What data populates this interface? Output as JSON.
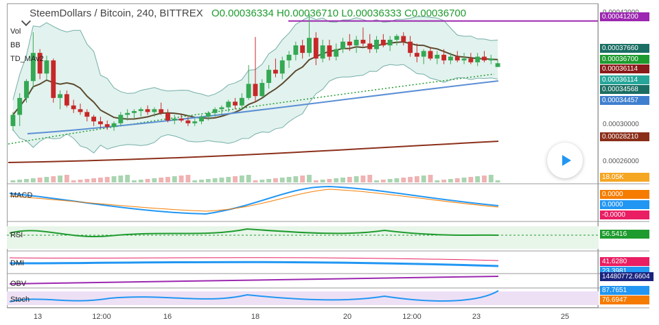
{
  "header": {
    "symbol": "SteemDollars / Bitcoin, 240, BITTREX",
    "ohlc": "O0.00036334  H0.00036710  L0.00036333  C0.00036700"
  },
  "indicators": {
    "vol": "Vol",
    "bb": "BB",
    "td": "TD_MAv2",
    "macd": "MACD",
    "rsi": "RSI",
    "dmi": "DMI",
    "obv": "OBV",
    "stoch": "Stoch"
  },
  "price_axis": {
    "ticks": [
      "0.00042000",
      "0.00030000",
      "0.00026000"
    ],
    "labels": [
      {
        "text": "0.00041200",
        "color": "#9c27b0"
      },
      {
        "text": "0.00037660",
        "color": "#1b6e63"
      },
      {
        "text": "0.00036700",
        "color": "#1e9b2e"
      },
      {
        "text": "0.00036114",
        "color": "#8b1a1a"
      },
      {
        "text": "0.00036114",
        "color": "#26a69a"
      },
      {
        "text": "0.00034568",
        "color": "#1b6e63"
      },
      {
        "text": "0.00034457",
        "color": "#3f7fcf"
      },
      {
        "text": "0.00028210",
        "color": "#8b2f1a"
      },
      {
        "text": "18.05K",
        "color": "#f5a623"
      }
    ]
  },
  "panes": {
    "macd": [
      "0.0000",
      "0.0000",
      "-0.0000"
    ],
    "rsi": "56.5416",
    "dmi": [
      "41.6280",
      "23.3981"
    ],
    "obv": "14480772.6604",
    "stoch": [
      "87.7651",
      "76.6947"
    ]
  },
  "time_axis": [
    "13",
    "12:00",
    "16",
    "18",
    "20",
    "12:00",
    "23",
    "25"
  ],
  "colors": {
    "up": "#34a853",
    "down": "#c62828",
    "bb_fill": "#d6ece7",
    "resistance": "#9c27b0",
    "ma_brown": "#5b4a2e",
    "ma_dark": "#8b2f1a",
    "ma_blue": "#5b8fd4"
  },
  "chart_data": {
    "type": "candlestick",
    "title": "SteemDollars / Bitcoin, 240, BITTREX",
    "ylim": [
      0.00024,
      0.00043
    ],
    "resistance": 0.000412,
    "candles": [
      [
        0.0003,
        0.000315,
        0.000295,
        0.000312
      ],
      [
        0.000312,
        0.000335,
        0.0003,
        0.00033
      ],
      [
        0.00033,
        0.00035,
        0.000325,
        0.000348
      ],
      [
        0.000348,
        0.0004,
        0.00034,
        0.000378
      ],
      [
        0.000378,
        0.000382,
        0.00035,
        0.000356
      ],
      [
        0.000356,
        0.000375,
        0.00035,
        0.00037
      ],
      [
        0.00037,
        0.000372,
        0.000325,
        0.00033
      ],
      [
        0.00033,
        0.000338,
        0.000318,
        0.000334
      ],
      [
        0.000334,
        0.000338,
        0.00032,
        0.000322
      ],
      [
        0.000322,
        0.000328,
        0.000314,
        0.000318
      ],
      [
        0.000318,
        0.000324,
        0.000312,
        0.000315
      ],
      [
        0.000315,
        0.000318,
        0.000305,
        0.00031
      ],
      [
        0.00031,
        0.000312,
        0.0003,
        0.000305
      ],
      [
        0.000305,
        0.00031,
        0.000298,
        0.000302
      ],
      [
        0.000302,
        0.000306,
        0.000296,
        0.000299
      ],
      [
        0.000299,
        0.000305,
        0.000295,
        0.000303
      ],
      [
        0.000303,
        0.000315,
        0.0003,
        0.000312
      ],
      [
        0.000312,
        0.000318,
        0.000306,
        0.000314
      ],
      [
        0.000314,
        0.000318,
        0.000308,
        0.000316
      ],
      [
        0.000316,
        0.00032,
        0.00031,
        0.000318
      ],
      [
        0.000318,
        0.000322,
        0.000312,
        0.000315
      ],
      [
        0.000315,
        0.00032,
        0.00031,
        0.000318
      ],
      [
        0.000318,
        0.000325,
        0.000312,
        0.000314
      ],
      [
        0.000314,
        0.000318,
        0.000304,
        0.000306
      ],
      [
        0.000306,
        0.000312,
        0.000302,
        0.000308
      ],
      [
        0.000308,
        0.000312,
        0.000304,
        0.000306
      ],
      [
        0.000306,
        0.00031,
        0.0003,
        0.000303
      ],
      [
        0.000303,
        0.000308,
        0.0003,
        0.000305
      ],
      [
        0.000305,
        0.000312,
        0.000302,
        0.00031
      ],
      [
        0.00031,
        0.000316,
        0.000306,
        0.000314
      ],
      [
        0.000314,
        0.00032,
        0.00031,
        0.000318
      ],
      [
        0.000318,
        0.000322,
        0.000312,
        0.00032
      ],
      [
        0.00032,
        0.000328,
        0.000315,
        0.000326
      ],
      [
        0.000326,
        0.00033,
        0.000318,
        0.000322
      ],
      [
        0.000322,
        0.000335,
        0.000318,
        0.00033
      ],
      [
        0.00033,
        0.000365,
        0.000328,
        0.000345
      ],
      [
        0.000345,
        0.000395,
        0.000325,
        0.000332
      ],
      [
        0.000332,
        0.00035,
        0.00033,
        0.000346
      ],
      [
        0.000346,
        0.000365,
        0.00034,
        0.00036
      ],
      [
        0.00036,
        0.000372,
        0.000352,
        0.000356
      ],
      [
        0.000356,
        0.000374,
        0.00035,
        0.00037
      ],
      [
        0.00037,
        0.00038,
        0.000362,
        0.000376
      ],
      [
        0.000376,
        0.00039,
        0.00037,
        0.000386
      ],
      [
        0.000386,
        0.000392,
        0.000372,
        0.000378
      ],
      [
        0.000378,
        0.00042,
        0.000374,
        0.000394
      ],
      [
        0.000394,
        0.0004,
        0.000365,
        0.000372
      ],
      [
        0.000372,
        0.000392,
        0.000368,
        0.000386
      ],
      [
        0.000386,
        0.000392,
        0.00037,
        0.000374
      ],
      [
        0.000374,
        0.000388,
        0.00037,
        0.000382
      ],
      [
        0.000382,
        0.000394,
        0.000378,
        0.00039
      ],
      [
        0.00039,
        0.000398,
        0.00038,
        0.000386
      ],
      [
        0.000386,
        0.000396,
        0.000378,
        0.000392
      ],
      [
        0.000392,
        0.000405,
        0.000385,
        0.000388
      ],
      [
        0.000388,
        0.000398,
        0.000378,
        0.000382
      ],
      [
        0.000382,
        0.000396,
        0.000378,
        0.000392
      ],
      [
        0.000392,
        0.000398,
        0.000384,
        0.000386
      ],
      [
        0.000386,
        0.000396,
        0.00038,
        0.000392
      ],
      [
        0.000392,
        0.000398,
        0.000386,
        0.000396
      ],
      [
        0.000396,
        0.0004,
        0.000386,
        0.00039
      ],
      [
        0.00039,
        0.000396,
        0.000374,
        0.000378
      ],
      [
        0.000378,
        0.000388,
        0.000368,
        0.000374
      ],
      [
        0.000374,
        0.000382,
        0.000366,
        0.00038
      ],
      [
        0.00038,
        0.000384,
        0.00037,
        0.000372
      ],
      [
        0.000372,
        0.00038,
        0.000366,
        0.000376
      ],
      [
        0.000376,
        0.000382,
        0.000366,
        0.00037
      ],
      [
        0.00037,
        0.000378,
        0.000366,
        0.000374
      ],
      [
        0.000374,
        0.00038,
        0.000368,
        0.00037
      ],
      [
        0.00037,
        0.000378,
        0.000366,
        0.000372
      ],
      [
        0.000372,
        0.000378,
        0.000366,
        0.000368
      ],
      [
        0.000368,
        0.000378,
        0.000364,
        0.000374
      ],
      [
        0.000374,
        0.00038,
        0.000368,
        0.00037
      ],
      [
        0.00037,
        0.000376,
        0.000366,
        0.000372
      ],
      [
        0.000363,
        0.000371,
        0.000363,
        0.000367
      ]
    ]
  }
}
